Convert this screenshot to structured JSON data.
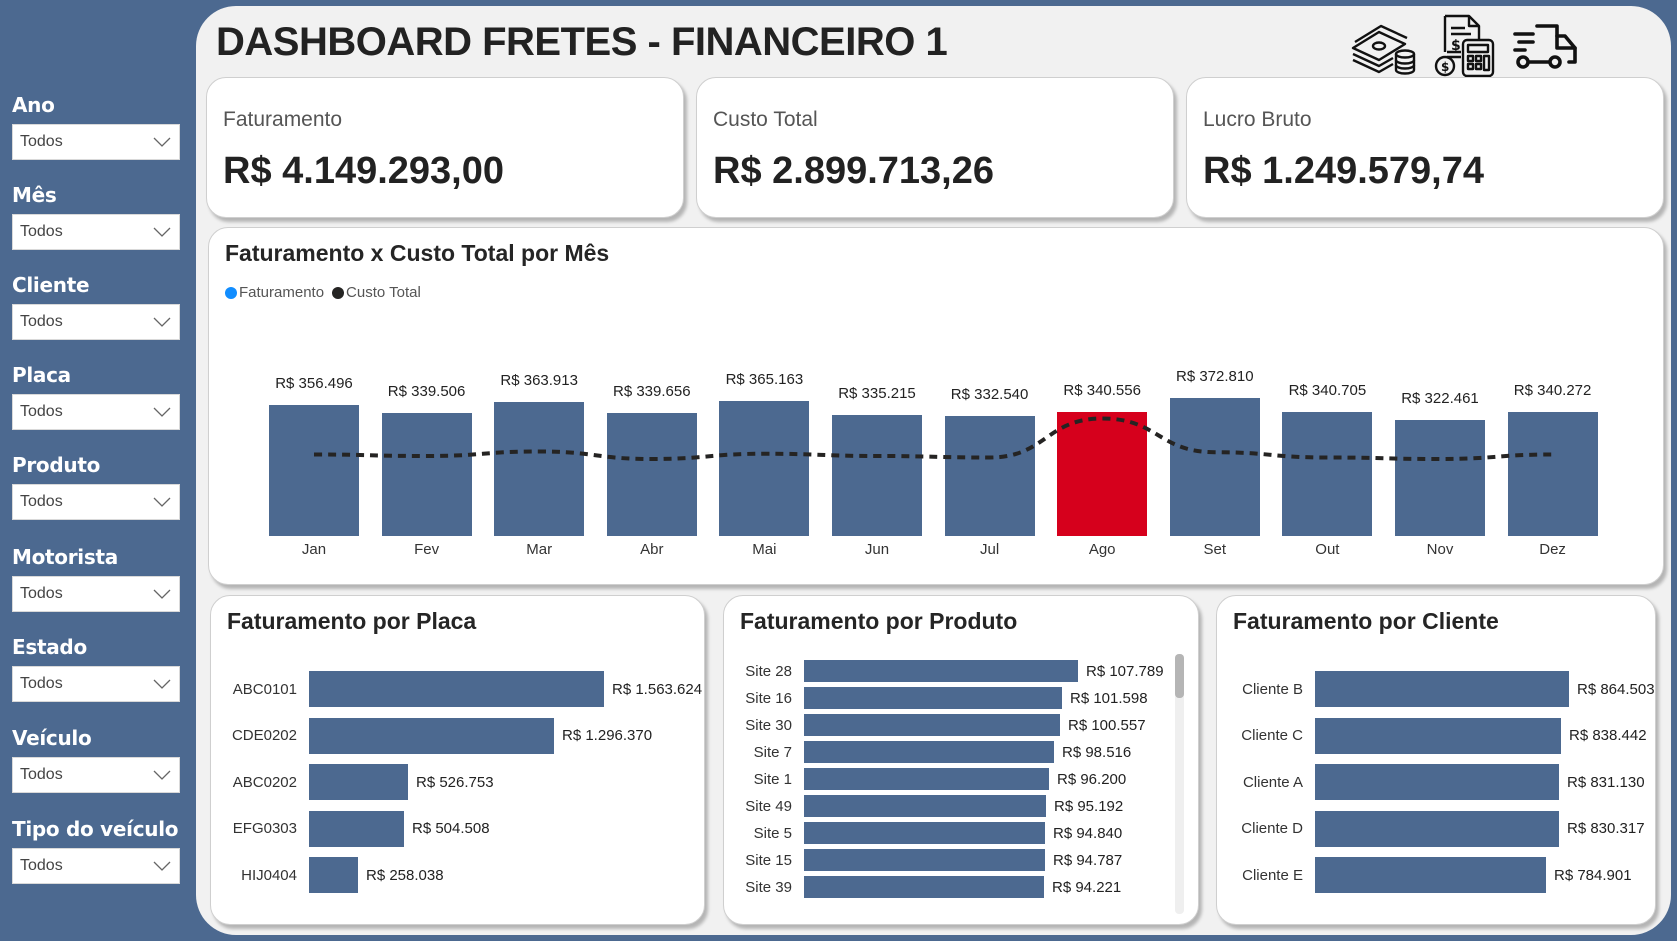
{
  "header": {
    "title": "DASHBOARD FRETES - FINANCEIRO 1",
    "icons": [
      "money-stack-icon",
      "invoice-calculator-icon",
      "delivery-truck-icon"
    ]
  },
  "colors": {
    "brand": "#4c6990",
    "highlight": "#d6001c",
    "canvas": "#f1f1f1",
    "legend_faturamento": "#118dff",
    "legend_custo": "#252423"
  },
  "sidebar": {
    "filters": [
      {
        "label": "Ano",
        "value": "Todos"
      },
      {
        "label": "Mês",
        "value": "Todos"
      },
      {
        "label": "Cliente",
        "value": "Todos"
      },
      {
        "label": "Placa",
        "value": "Todos"
      },
      {
        "label": "Produto",
        "value": "Todos"
      },
      {
        "label": "Motorista",
        "value": "Todos"
      },
      {
        "label": "Estado",
        "value": "Todos"
      },
      {
        "label": "Veículo",
        "value": "Todos"
      },
      {
        "label": "Tipo do veículo",
        "value": "Todos"
      }
    ]
  },
  "kpis": [
    {
      "label": "Faturamento",
      "value": "R$ 4.149.293,00"
    },
    {
      "label": "Custo Total",
      "value": "R$ 2.899.713,26"
    },
    {
      "label": "Lucro Bruto",
      "value": "R$ 1.249.579,74"
    }
  ],
  "monthly": {
    "title": "Faturamento x Custo Total por Mês",
    "legend": [
      "Faturamento",
      "Custo Total"
    ],
    "months": [
      {
        "label": "Jan",
        "value": "R$ 356.496"
      },
      {
        "label": "Fev",
        "value": "R$ 339.506"
      },
      {
        "label": "Mar",
        "value": "R$ 363.913"
      },
      {
        "label": "Abr",
        "value": "R$ 339.656"
      },
      {
        "label": "Mai",
        "value": "R$ 365.163"
      },
      {
        "label": "Jun",
        "value": "R$ 335.215"
      },
      {
        "label": "Jul",
        "value": "R$ 332.540"
      },
      {
        "label": "Ago",
        "value": "R$ 340.556"
      },
      {
        "label": "Set",
        "value": "R$ 372.810"
      },
      {
        "label": "Out",
        "value": "R$ 340.705"
      },
      {
        "label": "Nov",
        "value": "R$ 322.461"
      },
      {
        "label": "Dez",
        "value": "R$ 340.272"
      }
    ]
  },
  "placa": {
    "title": "Faturamento por Placa",
    "rows": [
      {
        "label": "ABC0101",
        "value": "R$ 1.563.624"
      },
      {
        "label": "CDE0202",
        "value": "R$ 1.296.370"
      },
      {
        "label": "ABC0202",
        "value": "R$ 526.753"
      },
      {
        "label": "EFG0303",
        "value": "R$ 504.508"
      },
      {
        "label": "HIJ0404",
        "value": "R$ 258.038"
      }
    ]
  },
  "produto": {
    "title": "Faturamento por Produto",
    "rows": [
      {
        "label": "Site 28",
        "value": "R$ 107.789"
      },
      {
        "label": "Site 16",
        "value": "R$ 101.598"
      },
      {
        "label": "Site 30",
        "value": "R$ 100.557"
      },
      {
        "label": "Site 7",
        "value": "R$ 98.516"
      },
      {
        "label": "Site 1",
        "value": "R$ 96.200"
      },
      {
        "label": "Site 49",
        "value": "R$ 95.192"
      },
      {
        "label": "Site 5",
        "value": "R$ 94.840"
      },
      {
        "label": "Site 15",
        "value": "R$ 94.787"
      },
      {
        "label": "Site 39",
        "value": "R$ 94.221"
      }
    ]
  },
  "cliente": {
    "title": "Faturamento por Cliente",
    "rows": [
      {
        "label": "Cliente B",
        "value": "R$ 864.503"
      },
      {
        "label": "Cliente C",
        "value": "R$ 838.442"
      },
      {
        "label": "Cliente A",
        "value": "R$ 831.130"
      },
      {
        "label": "Cliente D",
        "value": "R$ 830.317"
      },
      {
        "label": "Cliente E",
        "value": "R$ 784.901"
      }
    ]
  },
  "chart_data": [
    {
      "type": "bar",
      "title": "Faturamento x Custo Total por Mês",
      "categories": [
        "Jan",
        "Fev",
        "Mar",
        "Abr",
        "Mai",
        "Jun",
        "Jul",
        "Ago",
        "Set",
        "Out",
        "Nov",
        "Dez"
      ],
      "series": [
        {
          "name": "Faturamento",
          "values": [
            356496,
            339506,
            363913,
            339656,
            365163,
            335215,
            332540,
            340556,
            372810,
            340705,
            322461,
            340272
          ]
        },
        {
          "name": "Custo Total",
          "type": "line",
          "style": "dashed",
          "values": [
            242000,
            240000,
            246000,
            236000,
            243000,
            240000,
            238000,
            290000,
            245000,
            238000,
            236000,
            242000
          ]
        }
      ],
      "highlight": {
        "category": "Ago",
        "color": "#d6001c"
      },
      "legend": [
        "Faturamento",
        "Custo Total"
      ],
      "legend_position": "top-left",
      "grid": false
    },
    {
      "type": "bar",
      "orientation": "horizontal",
      "title": "Faturamento por Placa",
      "categories": [
        "ABC0101",
        "CDE0202",
        "ABC0202",
        "EFG0303",
        "HIJ0404"
      ],
      "values": [
        1563624,
        1296370,
        526753,
        504508,
        258038
      ]
    },
    {
      "type": "bar",
      "orientation": "horizontal",
      "title": "Faturamento por Produto",
      "categories": [
        "Site 28",
        "Site 16",
        "Site 30",
        "Site 7",
        "Site 1",
        "Site 49",
        "Site 5",
        "Site 15",
        "Site 39"
      ],
      "values": [
        107789,
        101598,
        100557,
        98516,
        96200,
        95192,
        94840,
        94787,
        94221
      ]
    },
    {
      "type": "bar",
      "orientation": "horizontal",
      "title": "Faturamento por Cliente",
      "categories": [
        "Cliente B",
        "Cliente C",
        "Cliente A",
        "Cliente D",
        "Cliente E"
      ],
      "values": [
        864503,
        838442,
        831130,
        830317,
        784901
      ]
    }
  ]
}
